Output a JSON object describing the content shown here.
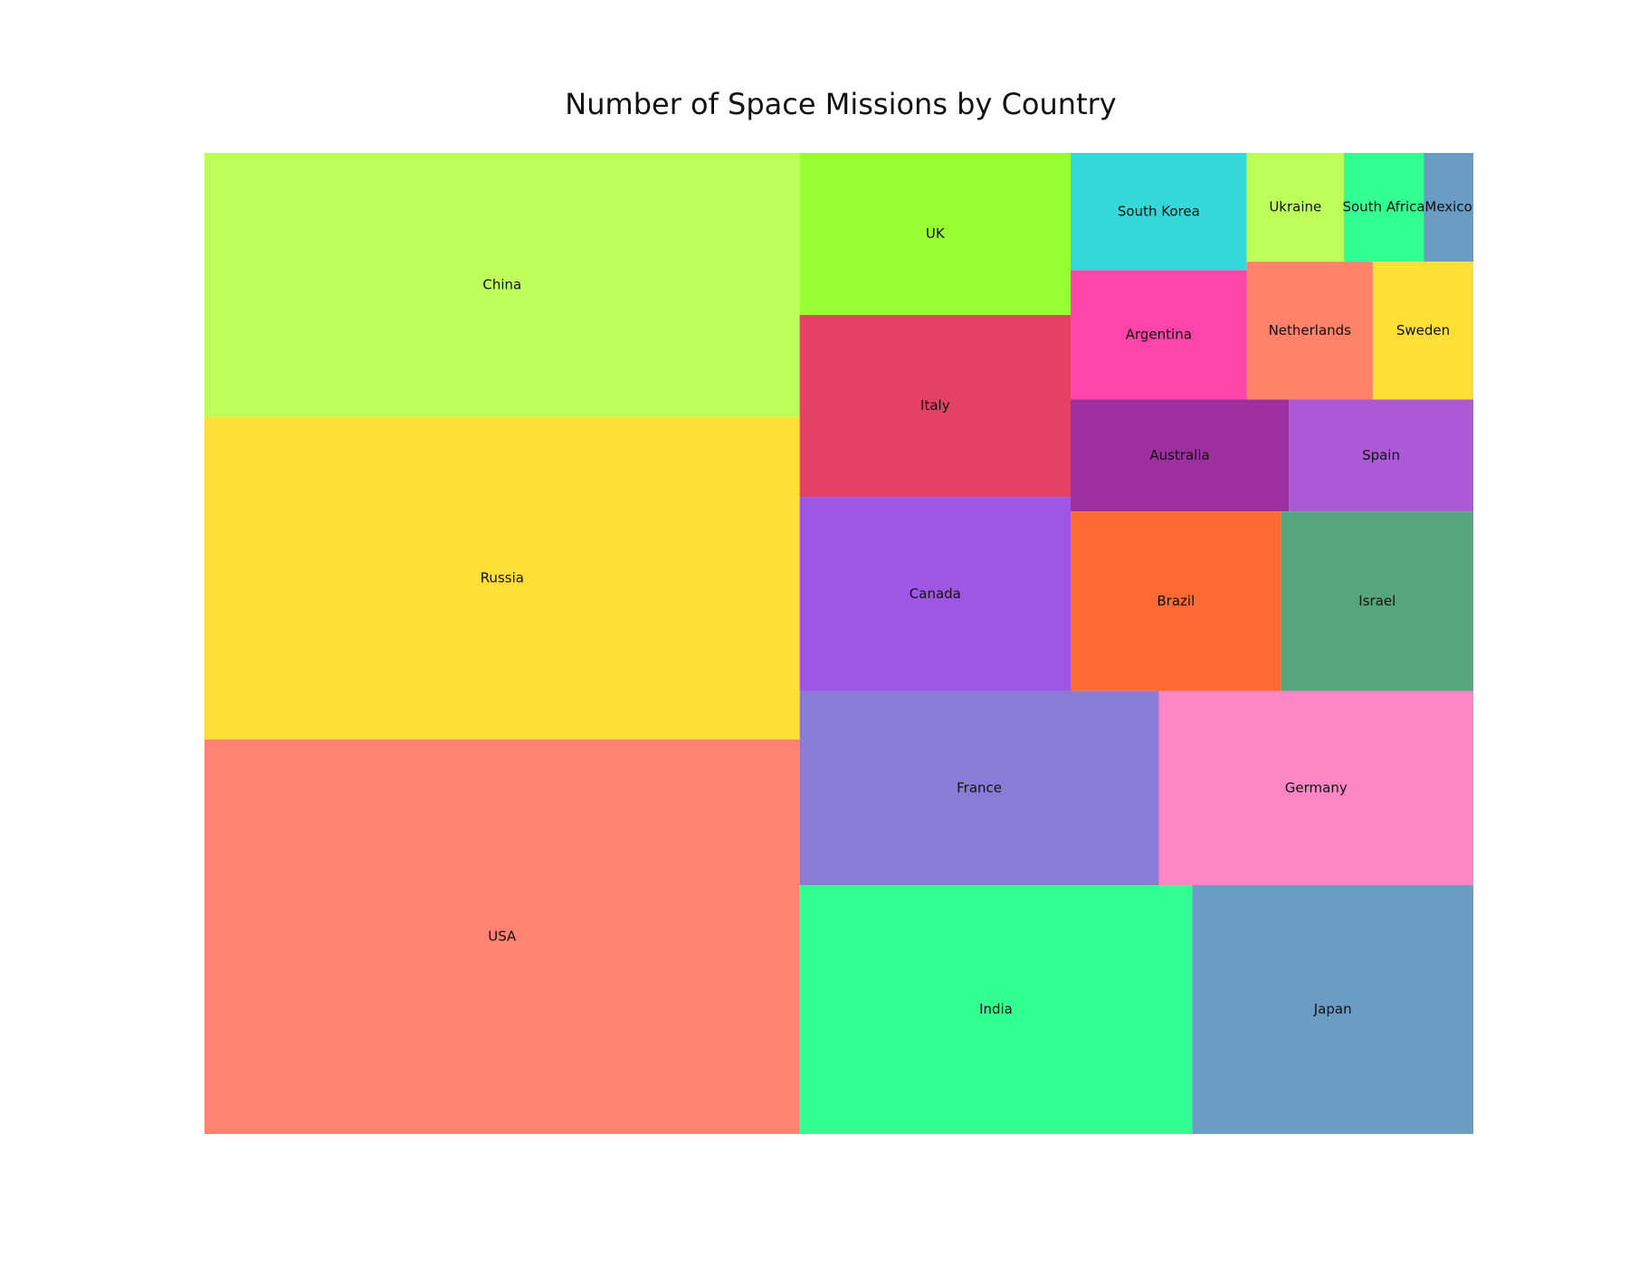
{
  "chart_data": {
    "type": "treemap",
    "title": "Number of Space Missions by Country",
    "items": [
      {
        "label": "USA",
        "value": 1000,
        "color": "#ff8370"
      },
      {
        "label": "Russia",
        "value": 817,
        "color": "#ffdf36"
      },
      {
        "label": "China",
        "value": 670,
        "color": "#bfff5a"
      },
      {
        "label": "India",
        "value": 416,
        "color": "#34ff93"
      },
      {
        "label": "Japan",
        "value": 298,
        "color": "#6b9cc4"
      },
      {
        "label": "France",
        "value": 297,
        "color": "#887cd7"
      },
      {
        "label": "Germany",
        "value": 260,
        "color": "#ff86c4"
      },
      {
        "label": "Canada",
        "value": 224,
        "color": "#a056e5"
      },
      {
        "label": "Italy",
        "value": 210,
        "color": "#e34264"
      },
      {
        "label": "UK",
        "value": 187,
        "color": "#98ff33"
      },
      {
        "label": "Brazil",
        "value": 161,
        "color": "#ff6a33"
      },
      {
        "label": "Israel",
        "value": 147,
        "color": "#57a57a"
      },
      {
        "label": "Australia",
        "value": 104,
        "color": "#9d2f9f"
      },
      {
        "label": "Spain",
        "value": 88,
        "color": "#ac59d6"
      },
      {
        "label": "Argentina",
        "value": 97,
        "color": "#ff44aa"
      },
      {
        "label": "Netherlands",
        "value": 74,
        "color": "#ff826b"
      },
      {
        "label": "Sweden",
        "value": 59,
        "color": "#ffdf36"
      },
      {
        "label": "South Korea",
        "value": 88,
        "color": "#34d8d8"
      },
      {
        "label": "Ukraine",
        "value": 45,
        "color": "#bfff5a"
      },
      {
        "label": "South Africa",
        "value": 37,
        "color": "#34ff93"
      },
      {
        "label": "Mexico",
        "value": 23,
        "color": "#6b9cc4"
      }
    ]
  }
}
